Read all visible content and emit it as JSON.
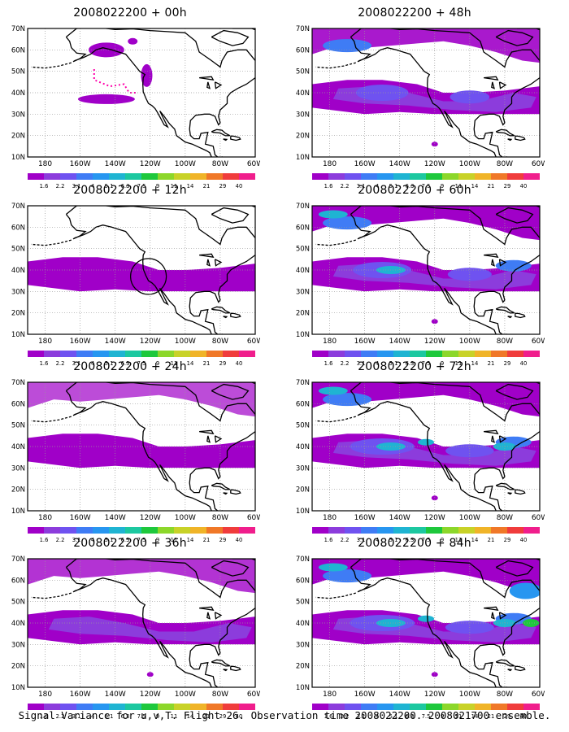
{
  "caption": "Signal Variance for u,v,T. Flight 26. Observation time 2008022200. 2008021700 ensemble.",
  "axes": {
    "lat_labels": [
      "70N",
      "60N",
      "50N",
      "40N",
      "30N",
      "20N",
      "10N"
    ],
    "lon_labels": [
      "180",
      "160W",
      "140W",
      "120W",
      "100W",
      "80W",
      "60W"
    ],
    "lon_range": [
      -190,
      -60
    ],
    "lat_range": [
      10,
      70
    ]
  },
  "colorbar": {
    "levels": [
      "1.6",
      "2.2",
      "3.1",
      "4",
      "5.1",
      "6.3",
      "7.5",
      "9",
      "11",
      "14",
      "21",
      "29",
      "40"
    ],
    "colors": [
      "#a000c8",
      "#8c3cdc",
      "#6f52f0",
      "#3f7cf5",
      "#2796f0",
      "#1fb4d2",
      "#1cc8a0",
      "#1ec83c",
      "#8cd72a",
      "#c8d228",
      "#f0b428",
      "#f07828",
      "#f03c3c",
      "#f01e8c"
    ]
  },
  "panels": [
    {
      "id": "p00",
      "title": "2008022200 + 00h",
      "level": 0
    },
    {
      "id": "p48",
      "title": "2008022200 + 48h",
      "level": 4
    },
    {
      "id": "p12",
      "title": "2008022200 + 12h",
      "level": 1
    },
    {
      "id": "p60",
      "title": "2008022200 + 60h",
      "level": 5
    },
    {
      "id": "p24",
      "title": "2008022200 + 24h",
      "level": 2
    },
    {
      "id": "p72",
      "title": "2008022200 + 72h",
      "level": 6
    },
    {
      "id": "p36",
      "title": "2008022200 + 36h",
      "level": 3
    },
    {
      "id": "p84",
      "title": "2008022200 + 84h",
      "level": 7
    }
  ]
}
